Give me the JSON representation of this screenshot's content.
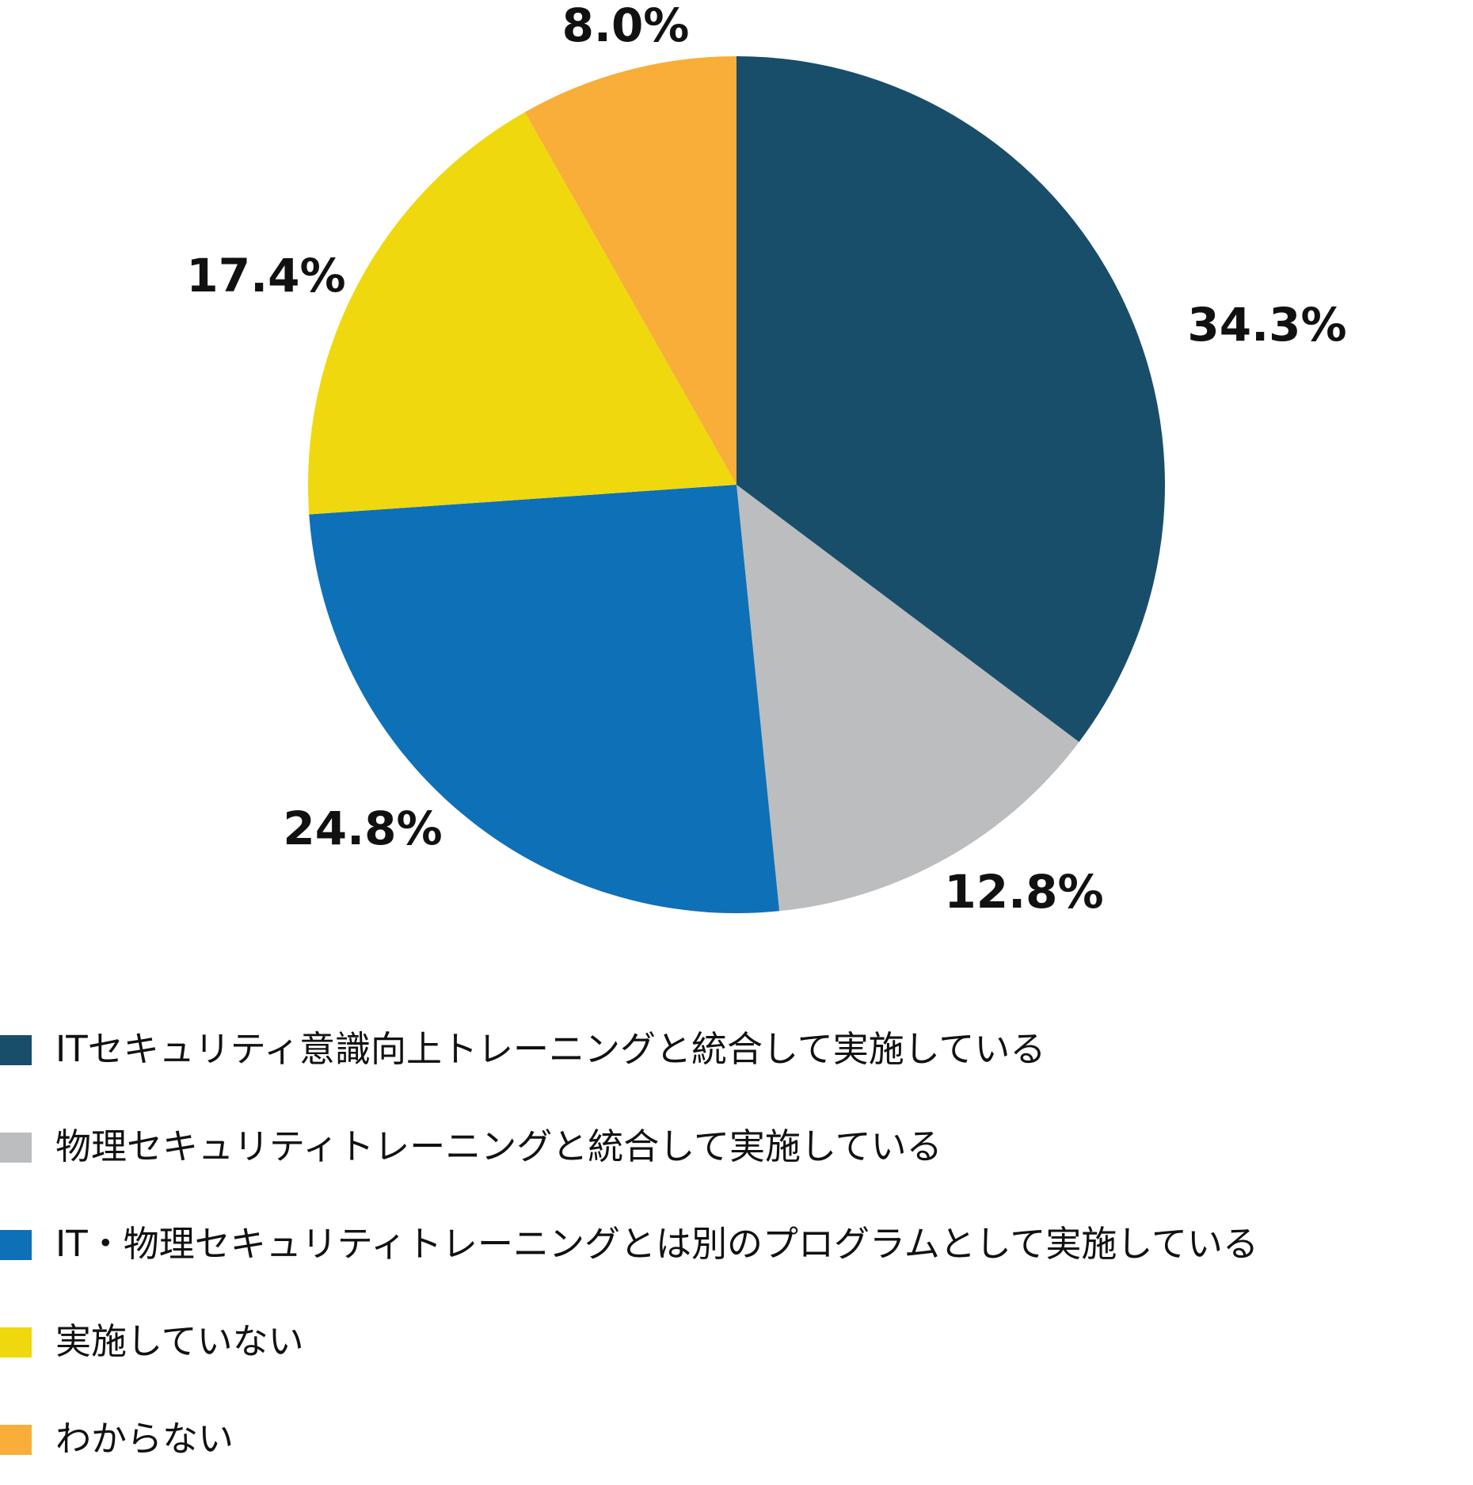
{
  "chart_data": {
    "type": "pie",
    "slices": [
      {
        "label": "ITセキュリティ意識向上トレーニングと統合して実施している",
        "value": 34.3,
        "value_label": "34.3%",
        "color": "#184E69"
      },
      {
        "label": "物理セキュリティトレーニングと統合して実施している",
        "value": 12.8,
        "value_label": "12.8%",
        "color": "#BCBDBF"
      },
      {
        "label": " IT・物理セキュリティトレーニングとは別のプログラムとして実施している",
        "value": 24.8,
        "value_label": "24.8%",
        "color": "#0E70B7"
      },
      {
        "label": "実施していない",
        "value": 17.4,
        "value_label": "17.4%",
        "color": "#EFD80D"
      },
      {
        "label": "わからない",
        "value": 8.0,
        "value_label": "8.0%",
        "color": "#F8AE38"
      }
    ],
    "start_angle": "top",
    "direction": "clockwise",
    "legend_position": "bottom-left"
  }
}
